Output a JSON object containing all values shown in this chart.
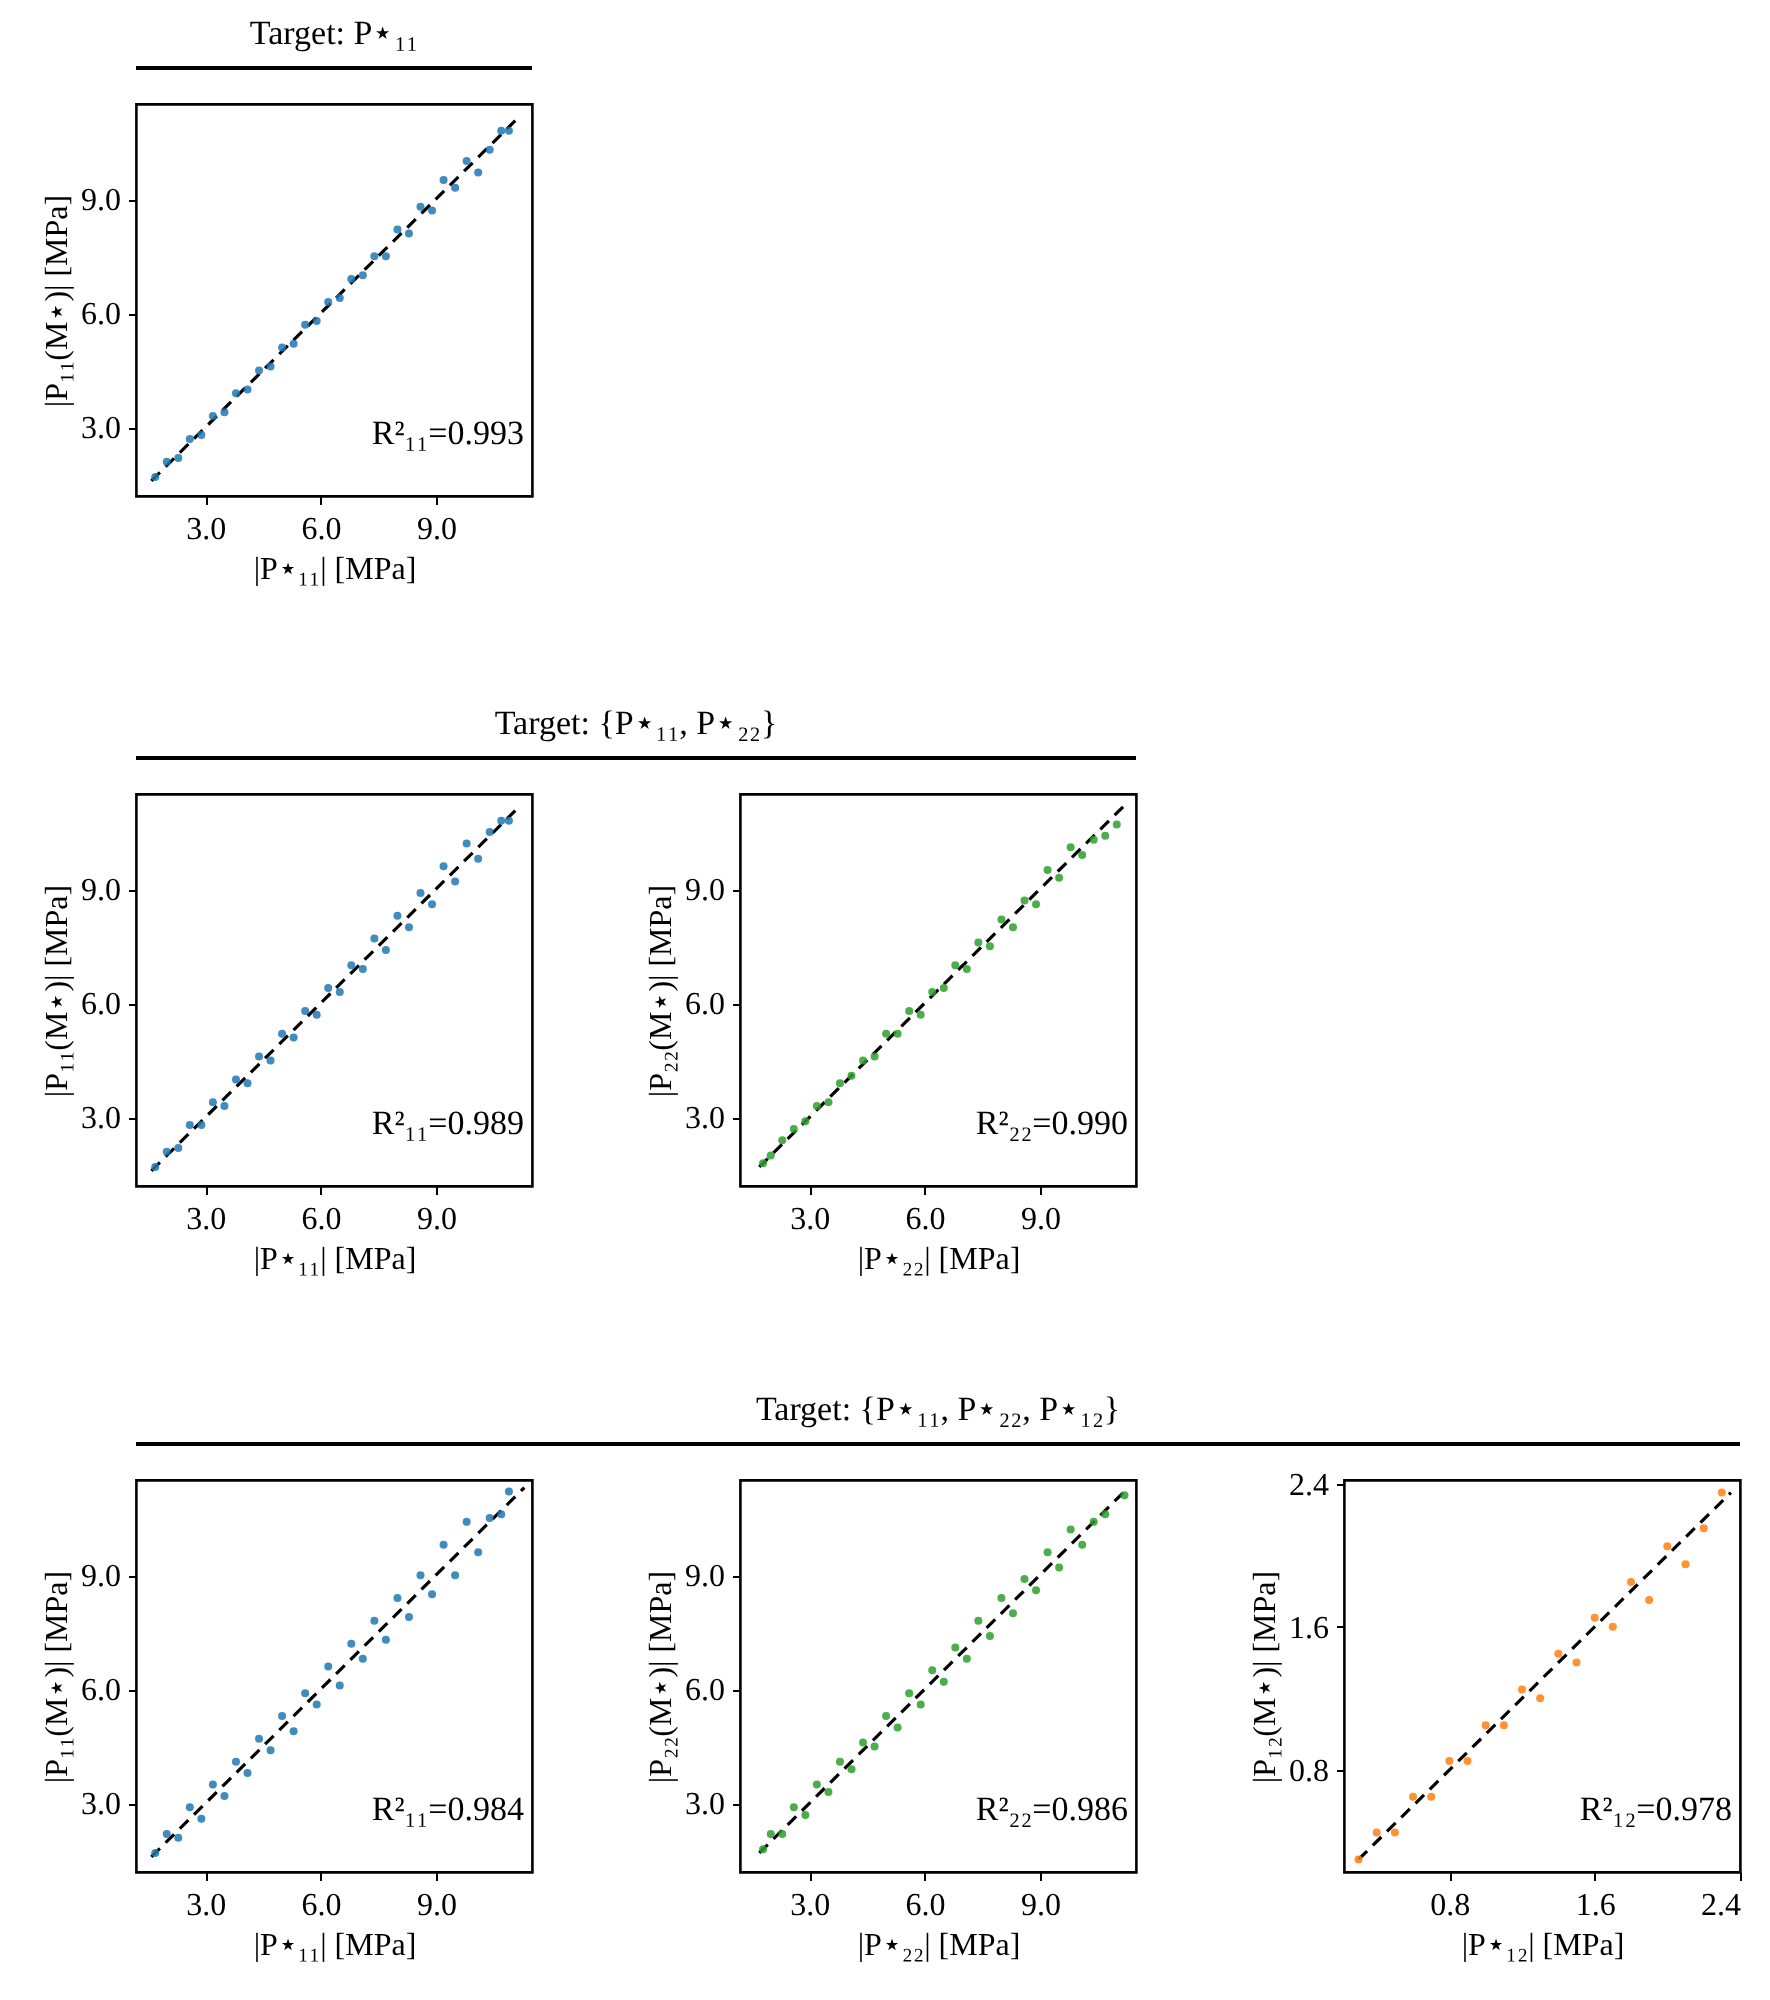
{
  "chart_data": [
    {
      "type": "scatter",
      "title": "Target: P⋆₁₁",
      "xlabel": "|P⋆₁₁| [MPa]",
      "ylabel": "|P₁₁(M⋆)| [MPa]",
      "xlim": [
        1.2,
        11.5
      ],
      "ylim": [
        1.2,
        11.5
      ],
      "xticks": [
        {
          "value": 3,
          "label": "3.0"
        },
        {
          "value": 6,
          "label": "6.0"
        },
        {
          "value": 9,
          "label": "9.0"
        }
      ],
      "yticks": [
        {
          "value": 3,
          "label": "3.0"
        },
        {
          "value": 6,
          "label": "6.0"
        },
        {
          "value": 9,
          "label": "9.0"
        }
      ],
      "annotations": [
        "R²₁₁=0.993"
      ],
      "series": [
        {
          "color": "#1f77b4",
          "marker": "circle",
          "x": [
            1.7,
            2.0,
            2.3,
            2.6,
            2.9,
            3.2,
            3.5,
            3.8,
            4.1,
            4.4,
            4.7,
            5.0,
            5.3,
            5.6,
            5.9,
            6.2,
            6.5,
            6.8,
            7.1,
            7.4,
            7.7,
            8.0,
            8.3,
            8.6,
            8.9,
            9.2,
            9.5,
            9.8,
            10.1,
            10.4,
            10.7,
            10.9
          ],
          "values": [
            1.7,
            2.1,
            2.2,
            2.7,
            2.8,
            3.3,
            3.4,
            3.9,
            4.0,
            4.5,
            4.6,
            5.1,
            5.2,
            5.7,
            5.8,
            6.3,
            6.4,
            6.9,
            7.0,
            7.5,
            7.5,
            8.2,
            8.1,
            8.8,
            8.7,
            9.5,
            9.3,
            10.0,
            9.7,
            10.3,
            10.8,
            10.8
          ]
        },
        {
          "type": "line",
          "color": "#000000",
          "line_style": "dashed",
          "x": [
            1.6,
            11.2
          ],
          "values": [
            1.6,
            11.2
          ]
        }
      ]
    },
    {
      "type": "scatter",
      "title": "Target: {P⋆₁₁, P⋆₂₂}",
      "xlabel": "|P⋆₁₁| [MPa]",
      "ylabel": "|P₁₁(M⋆)| [MPa]",
      "xlim": [
        1.2,
        11.5
      ],
      "ylim": [
        1.2,
        11.5
      ],
      "xticks": [
        {
          "value": 3,
          "label": "3.0"
        },
        {
          "value": 6,
          "label": "6.0"
        },
        {
          "value": 9,
          "label": "9.0"
        }
      ],
      "yticks": [
        {
          "value": 3,
          "label": "3.0"
        },
        {
          "value": 6,
          "label": "6.0"
        },
        {
          "value": 9,
          "label": "9.0"
        }
      ],
      "annotations": [
        "R²₁₁=0.989"
      ],
      "series": [
        {
          "color": "#1f77b4",
          "marker": "circle",
          "x": [
            1.7,
            2.0,
            2.3,
            2.6,
            2.9,
            3.2,
            3.5,
            3.8,
            4.1,
            4.4,
            4.7,
            5.0,
            5.3,
            5.6,
            5.9,
            6.2,
            6.5,
            6.8,
            7.1,
            7.4,
            7.7,
            8.0,
            8.3,
            8.6,
            8.9,
            9.2,
            9.5,
            9.8,
            10.1,
            10.4,
            10.7,
            10.9
          ],
          "values": [
            1.7,
            2.1,
            2.2,
            2.8,
            2.8,
            3.4,
            3.3,
            4.0,
            3.9,
            4.6,
            4.5,
            5.2,
            5.1,
            5.8,
            5.7,
            6.4,
            6.3,
            7.0,
            6.9,
            7.7,
            7.4,
            8.3,
            8.0,
            8.9,
            8.6,
            9.6,
            9.2,
            10.2,
            9.8,
            10.5,
            10.8,
            10.8
          ]
        },
        {
          "type": "line",
          "color": "#000000",
          "line_style": "dashed",
          "x": [
            1.6,
            11.2
          ],
          "values": [
            1.6,
            11.2
          ]
        }
      ]
    },
    {
      "type": "scatter",
      "xlabel": "|P⋆₂₂| [MPa]",
      "ylabel": "|P₂₂(M⋆)| [MPa]",
      "xlim": [
        1.2,
        11.5
      ],
      "ylim": [
        1.2,
        11.5
      ],
      "xticks": [
        {
          "value": 3,
          "label": "3.0"
        },
        {
          "value": 6,
          "label": "6.0"
        },
        {
          "value": 9,
          "label": "9.0"
        }
      ],
      "yticks": [
        {
          "value": 3,
          "label": "3.0"
        },
        {
          "value": 6,
          "label": "6.0"
        },
        {
          "value": 9,
          "label": "9.0"
        }
      ],
      "annotations": [
        "R²₂₂=0.990"
      ],
      "series": [
        {
          "color": "#2ca02c",
          "marker": "circle",
          "x": [
            1.8,
            2.0,
            2.3,
            2.6,
            2.9,
            3.2,
            3.5,
            3.8,
            4.1,
            4.4,
            4.7,
            5.0,
            5.3,
            5.6,
            5.9,
            6.2,
            6.5,
            6.8,
            7.1,
            7.4,
            7.7,
            8.0,
            8.3,
            8.6,
            8.9,
            9.2,
            9.5,
            9.8,
            10.1,
            10.4,
            10.7,
            11.0
          ],
          "values": [
            1.8,
            2.0,
            2.4,
            2.7,
            2.9,
            3.3,
            3.4,
            3.9,
            4.1,
            4.5,
            4.6,
            5.2,
            5.2,
            5.8,
            5.7,
            6.3,
            6.4,
            7.0,
            6.9,
            7.6,
            7.5,
            8.2,
            8.0,
            8.7,
            8.6,
            9.5,
            9.3,
            10.1,
            9.9,
            10.3,
            10.4,
            10.7
          ]
        },
        {
          "type": "line",
          "color": "#000000",
          "line_style": "dashed",
          "x": [
            1.7,
            11.2
          ],
          "values": [
            1.7,
            11.2
          ]
        }
      ]
    },
    {
      "type": "scatter",
      "xlabel": "|P⋆₁₁| [MPa]",
      "ylabel": "|P₁₁(M⋆)| [MPa]",
      "xlim": [
        1.2,
        11.5
      ],
      "ylim": [
        1.2,
        11.5
      ],
      "xticks": [
        {
          "value": 3,
          "label": "3.0"
        },
        {
          "value": 6,
          "label": "6.0"
        },
        {
          "value": 9,
          "label": "9.0"
        }
      ],
      "yticks": [
        {
          "value": 3,
          "label": "3.0"
        },
        {
          "value": 6,
          "label": "6.0"
        },
        {
          "value": 9,
          "label": "9.0"
        }
      ],
      "annotations": [
        "R²₁₁=0.984"
      ],
      "series": [
        {
          "color": "#1f77b4",
          "marker": "circle",
          "x": [
            1.7,
            2.0,
            2.3,
            2.6,
            2.9,
            3.2,
            3.5,
            3.8,
            4.1,
            4.4,
            4.7,
            5.0,
            5.3,
            5.6,
            5.9,
            6.2,
            6.5,
            6.8,
            7.1,
            7.4,
            7.7,
            8.0,
            8.3,
            8.6,
            8.9,
            9.2,
            9.5,
            9.8,
            10.1,
            10.4,
            10.7,
            10.9
          ],
          "values": [
            1.7,
            2.2,
            2.1,
            2.9,
            2.6,
            3.5,
            3.2,
            4.1,
            3.8,
            4.7,
            4.4,
            5.3,
            4.9,
            5.9,
            5.6,
            6.6,
            6.1,
            7.2,
            6.8,
            7.8,
            7.3,
            8.4,
            7.9,
            9.0,
            8.5,
            9.8,
            9.0,
            10.4,
            9.6,
            10.5,
            10.6,
            11.2
          ]
        },
        {
          "type": "line",
          "color": "#000000",
          "line_style": "dashed",
          "x": [
            1.6,
            11.3
          ],
          "values": [
            1.6,
            11.3
          ]
        }
      ]
    },
    {
      "type": "scatter",
      "title": "Target: {P⋆₁₁, P⋆₂₂, P⋆₁₂}",
      "xlabel": "|P⋆₂₂| [MPa]",
      "ylabel": "|P₂₂(M⋆)| [MPa]",
      "xlim": [
        1.2,
        11.5
      ],
      "ylim": [
        1.2,
        11.5
      ],
      "xticks": [
        {
          "value": 3,
          "label": "3.0"
        },
        {
          "value": 6,
          "label": "6.0"
        },
        {
          "value": 9,
          "label": "9.0"
        }
      ],
      "yticks": [
        {
          "value": 3,
          "label": "3.0"
        },
        {
          "value": 6,
          "label": "6.0"
        },
        {
          "value": 9,
          "label": "9.0"
        }
      ],
      "annotations": [
        "R²₂₂=0.986"
      ],
      "series": [
        {
          "color": "#2ca02c",
          "marker": "circle",
          "x": [
            1.8,
            2.0,
            2.3,
            2.6,
            2.9,
            3.2,
            3.5,
            3.8,
            4.1,
            4.4,
            4.7,
            5.0,
            5.3,
            5.6,
            5.9,
            6.2,
            6.5,
            6.8,
            7.1,
            7.4,
            7.7,
            8.0,
            8.3,
            8.6,
            8.9,
            9.2,
            9.5,
            9.8,
            10.1,
            10.4,
            10.7,
            11.2
          ],
          "values": [
            1.8,
            2.2,
            2.2,
            2.9,
            2.7,
            3.5,
            3.3,
            4.1,
            3.9,
            4.6,
            4.5,
            5.3,
            5.0,
            5.9,
            5.6,
            6.5,
            6.2,
            7.1,
            6.8,
            7.8,
            7.4,
            8.4,
            8.0,
            8.9,
            8.6,
            9.6,
            9.2,
            10.2,
            9.8,
            10.4,
            10.6,
            11.1
          ]
        },
        {
          "type": "line",
          "color": "#000000",
          "line_style": "dashed",
          "x": [
            1.7,
            11.2
          ],
          "values": [
            1.7,
            11.2
          ]
        }
      ]
    },
    {
      "type": "scatter",
      "xlabel": "|P⋆₁₂| [MPa]",
      "ylabel": "|P₁₂(M⋆)| [MPa]",
      "xlim": [
        0.22,
        2.4
      ],
      "ylim": [
        0.23,
        2.42
      ],
      "xticks": [
        0.8,
        1.6,
        2.4
      ],
      "yticks": [
        0.8,
        1.6,
        2.4
      ],
      "annotations": [
        "R²₁₂=0.978"
      ],
      "series": [
        {
          "color": "#ff7f0e",
          "marker": "circle",
          "x": [
            0.3,
            0.4,
            0.5,
            0.6,
            0.7,
            0.8,
            0.9,
            1.0,
            1.1,
            1.2,
            1.3,
            1.4,
            1.5,
            1.6,
            1.7,
            1.8,
            1.9,
            2.0,
            2.1,
            2.2,
            2.3
          ],
          "values": [
            0.3,
            0.45,
            0.45,
            0.65,
            0.65,
            0.85,
            0.85,
            1.05,
            1.05,
            1.25,
            1.2,
            1.45,
            1.4,
            1.65,
            1.6,
            1.85,
            1.75,
            2.05,
            1.95,
            2.15,
            2.35
          ]
        },
        {
          "type": "line",
          "color": "#000000",
          "line_style": "dashed",
          "x": [
            0.3,
            2.35
          ],
          "values": [
            0.3,
            2.35
          ]
        }
      ]
    }
  ]
}
